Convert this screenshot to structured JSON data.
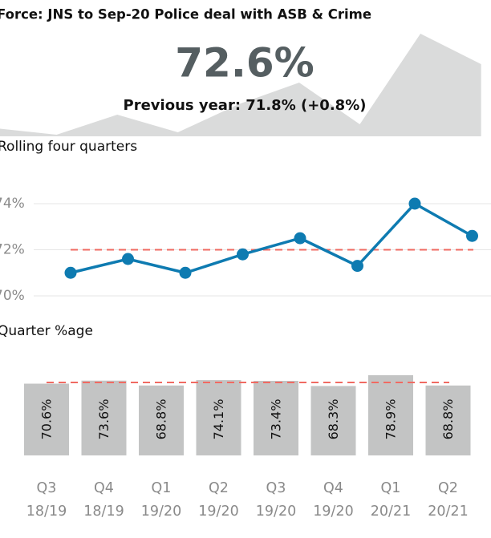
{
  "header": {
    "title": "Force: JNS to Sep-20 Police deal with ASB & Crime",
    "kpi": "72.6%",
    "previous": "Previous year: 71.8% (+0.8%)"
  },
  "chart_data": [
    {
      "type": "area",
      "color": "#dadbdb",
      "values": [
        10,
        2,
        27,
        5,
        40,
        67,
        15,
        128,
        90
      ]
    },
    {
      "type": "line",
      "title": "Rolling four quarters",
      "values": [
        71.0,
        71.6,
        71.0,
        71.8,
        72.5,
        71.3,
        74.0,
        72.6
      ],
      "color": "#0e7bb1",
      "reference": 72.0,
      "reference_color": "#f06a62",
      "ylim": [
        70,
        74
      ],
      "yticks": [
        {
          "value": 70,
          "label": "70%"
        },
        {
          "value": 72,
          "label": "72%"
        },
        {
          "value": 74,
          "label": "74%"
        }
      ],
      "grid": true
    },
    {
      "type": "bar",
      "title": "Quarter %age",
      "categories": [
        [
          "Q3",
          "18/19"
        ],
        [
          "Q4",
          "18/19"
        ],
        [
          "Q1",
          "19/20"
        ],
        [
          "Q2",
          "19/20"
        ],
        [
          "Q3",
          "19/20"
        ],
        [
          "Q4",
          "19/20"
        ],
        [
          "Q1",
          "20/21"
        ],
        [
          "Q2",
          "20/21"
        ]
      ],
      "values": [
        70.6,
        73.6,
        68.8,
        74.1,
        73.4,
        68.3,
        78.9,
        68.8
      ],
      "value_labels": [
        "70.6%",
        "73.6%",
        "68.8%",
        "74.1%",
        "73.4%",
        "68.3%",
        "78.9%",
        "68.8%"
      ],
      "color": "#c3c4c4",
      "reference": 71.8,
      "reference_color": "#f06a62"
    }
  ]
}
